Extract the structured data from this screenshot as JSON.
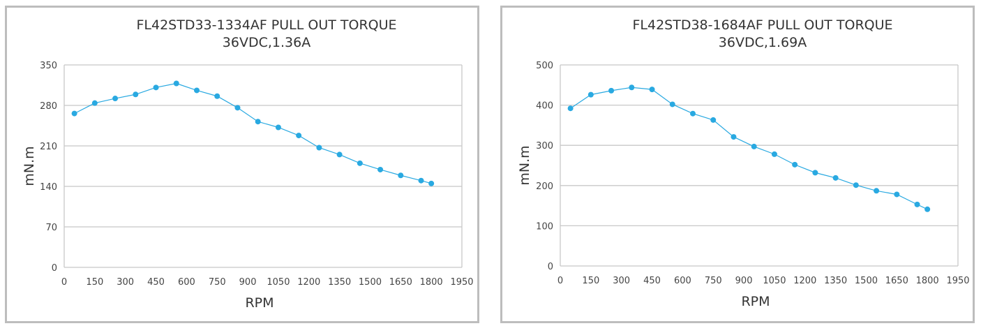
{
  "chart_data": [
    {
      "type": "line",
      "title": "FL42STD33-1334AF PULL OUT TORQUE",
      "subtitle": "36VDC,1.36A",
      "xlabel": "RPM",
      "ylabel": "mN.m",
      "xlim": [
        0,
        1950
      ],
      "ylim": [
        0,
        350
      ],
      "xticks": [
        "0",
        "150",
        "300",
        "450",
        "600",
        "750",
        "900",
        "1050",
        "1200",
        "1350",
        "1500",
        "1650",
        "1800",
        "1950"
      ],
      "yticks": [
        "0",
        "70",
        "140",
        "210",
        "280",
        "350"
      ],
      "grid": "horizontal",
      "color": "#29a9e1",
      "x": [
        50,
        150,
        250,
        350,
        450,
        550,
        650,
        750,
        850,
        950,
        1050,
        1150,
        1250,
        1350,
        1450,
        1550,
        1650,
        1750,
        1800
      ],
      "y": [
        266,
        284,
        292,
        299,
        311,
        318,
        306,
        296,
        276,
        252,
        242,
        228,
        207,
        195,
        180,
        169,
        159,
        150,
        145
      ]
    },
    {
      "type": "line",
      "title": "FL42STD38-1684AF PULL OUT TORQUE",
      "subtitle": "36VDC,1.69A",
      "xlabel": "RPM",
      "ylabel": "mN.m",
      "xlim": [
        0,
        1950
      ],
      "ylim": [
        0,
        500
      ],
      "xticks": [
        "0",
        "150",
        "300",
        "450",
        "600",
        "750",
        "900",
        "1050",
        "1200",
        "1350",
        "1500",
        "1650",
        "1800",
        "1950"
      ],
      "yticks": [
        "0",
        "100",
        "200",
        "300",
        "400",
        "500"
      ],
      "grid": "horizontal",
      "color": "#29a9e1",
      "x": [
        50,
        150,
        250,
        350,
        450,
        550,
        650,
        750,
        850,
        950,
        1050,
        1150,
        1250,
        1350,
        1450,
        1550,
        1650,
        1750,
        1800
      ],
      "y": [
        392,
        426,
        436,
        444,
        439,
        402,
        379,
        363,
        321,
        297,
        278,
        252,
        232,
        219,
        201,
        187,
        178,
        153,
        141
      ]
    }
  ]
}
